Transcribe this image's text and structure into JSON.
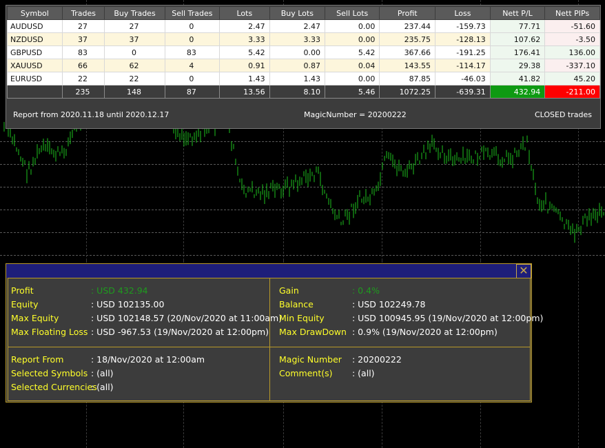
{
  "table": {
    "headers": [
      "Symbol",
      "Trades",
      "Buy Trades",
      "Sell Trades",
      "Lots",
      "Buy Lots",
      "Sell Lots",
      "Profit",
      "Loss",
      "Nett P/L",
      "Nett PIPs"
    ],
    "rows": [
      [
        "AUDUSD",
        "27",
        "27",
        "0",
        "2.47",
        "2.47",
        "0.00",
        "237.44",
        "-159.73",
        "77.71",
        "-51.60"
      ],
      [
        "NZDUSD",
        "37",
        "37",
        "0",
        "3.33",
        "3.33",
        "0.00",
        "235.75",
        "-128.13",
        "107.62",
        "-3.50"
      ],
      [
        "GBPUSD",
        "83",
        "0",
        "83",
        "5.42",
        "0.00",
        "5.42",
        "367.66",
        "-191.25",
        "176.41",
        "136.00"
      ],
      [
        "XAUUSD",
        "66",
        "62",
        "4",
        "0.91",
        "0.87",
        "0.04",
        "143.55",
        "-114.17",
        "29.38",
        "-337.10"
      ],
      [
        "EURUSD",
        "22",
        "22",
        "0",
        "1.43",
        "1.43",
        "0.00",
        "87.85",
        "-46.03",
        "41.82",
        "45.20"
      ]
    ],
    "totals": [
      "",
      "235",
      "148",
      "87",
      "13.56",
      "8.10",
      "5.46",
      "1072.25",
      "-639.31",
      "432.94",
      "-211.00"
    ],
    "report_range": "Report from 2020.11.18 until 2020.12.17",
    "magic_number": "MagicNumber = 20200222",
    "closed_label": "CLOSED trades"
  },
  "dialog": {
    "close_symbol": "✕",
    "left_top": [
      {
        "label": "Profit",
        "value": ": USD 432.94",
        "green": true
      },
      {
        "label": "Equity",
        "value": ": USD 102135.00",
        "green": false
      },
      {
        "label": "Max Equity",
        "value": ": USD 102148.57 (20/Nov/2020 at 11:00am)",
        "green": false
      },
      {
        "label": "Max Floating Loss",
        "value": ": USD -967.53 (19/Nov/2020 at 12:00pm)",
        "green": false
      }
    ],
    "right_top": [
      {
        "label": "Gain",
        "value": ": 0.4%",
        "green": true
      },
      {
        "label": "Balance",
        "value": ": USD 102249.78",
        "green": false
      },
      {
        "label": "Min Equity",
        "value": ": USD 100945.95 (19/Nov/2020 at 12:00pm)",
        "green": false
      },
      {
        "label": "Max DrawDown",
        "value": ": 0.9% (19/Nov/2020 at 12:00pm)",
        "green": false
      }
    ],
    "left_bottom": [
      {
        "label": "Report From",
        "value": ": 18/Nov/2020 at 12:00am"
      },
      {
        "label": "Selected Symbols",
        "value": ": (all)"
      },
      {
        "label": "Selected Currencies",
        "value": ": (all)"
      }
    ],
    "right_bottom": [
      {
        "label": "Magic Number",
        "value": ": 20200222"
      },
      {
        "label": "Comment(s)",
        "value": ": (all)"
      }
    ]
  },
  "colors": {
    "chart_line": "#1ec51e",
    "background": "#000000",
    "label_yellow": "#ffff2a",
    "positive": "#1e9b1e",
    "negative": "#c0161d"
  }
}
